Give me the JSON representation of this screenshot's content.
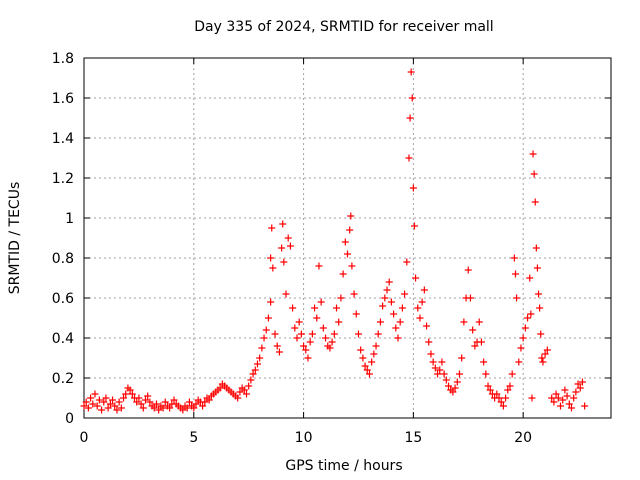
{
  "chart_data": {
    "type": "scatter",
    "title": "Day 335 of 2024, SRMTID for receiver mall",
    "xlabel": "GPS time / hours",
    "ylabel": "SRMTID / TECUs",
    "xlim": [
      0,
      24
    ],
    "ylim": [
      0,
      1.8
    ],
    "xticks": [
      0,
      5,
      10,
      15,
      20
    ],
    "yticks": [
      0,
      0.2,
      0.4,
      0.6,
      0.8,
      1,
      1.2,
      1.4,
      1.6,
      1.8
    ],
    "ytick_labels": [
      "0",
      "0.2",
      "0.4",
      "0.6",
      "0.8",
      "1",
      "1.2",
      "1.4",
      "1.6",
      "1.8"
    ],
    "grid": true,
    "marker": "+",
    "color": "#ff0000",
    "series": [
      {
        "name": "SRMTID",
        "points": [
          [
            0.0,
            0.06
          ],
          [
            0.1,
            0.08
          ],
          [
            0.2,
            0.05
          ],
          [
            0.3,
            0.1
          ],
          [
            0.4,
            0.07
          ],
          [
            0.5,
            0.12
          ],
          [
            0.6,
            0.06
          ],
          [
            0.7,
            0.09
          ],
          [
            0.8,
            0.04
          ],
          [
            0.9,
            0.08
          ],
          [
            1.0,
            0.1
          ],
          [
            1.1,
            0.05
          ],
          [
            1.2,
            0.07
          ],
          [
            1.3,
            0.09
          ],
          [
            1.4,
            0.06
          ],
          [
            1.5,
            0.04
          ],
          [
            1.6,
            0.08
          ],
          [
            1.7,
            0.05
          ],
          [
            1.8,
            0.1
          ],
          [
            1.9,
            0.12
          ],
          [
            2.0,
            0.15
          ],
          [
            2.1,
            0.14
          ],
          [
            2.2,
            0.12
          ],
          [
            2.3,
            0.1
          ],
          [
            2.4,
            0.08
          ],
          [
            2.5,
            0.1
          ],
          [
            2.6,
            0.07
          ],
          [
            2.7,
            0.05
          ],
          [
            2.8,
            0.09
          ],
          [
            2.9,
            0.11
          ],
          [
            3.0,
            0.08
          ],
          [
            3.1,
            0.06
          ],
          [
            3.2,
            0.05
          ],
          [
            3.3,
            0.07
          ],
          [
            3.4,
            0.04
          ],
          [
            3.5,
            0.06
          ],
          [
            3.6,
            0.05
          ],
          [
            3.7,
            0.08
          ],
          [
            3.8,
            0.06
          ],
          [
            3.9,
            0.05
          ],
          [
            4.0,
            0.07
          ],
          [
            4.1,
            0.09
          ],
          [
            4.2,
            0.07
          ],
          [
            4.3,
            0.06
          ],
          [
            4.4,
            0.05
          ],
          [
            4.5,
            0.04
          ],
          [
            4.6,
            0.06
          ],
          [
            4.7,
            0.05
          ],
          [
            4.8,
            0.08
          ],
          [
            4.9,
            0.06
          ],
          [
            5.0,
            0.05
          ],
          [
            5.1,
            0.07
          ],
          [
            5.2,
            0.09
          ],
          [
            5.3,
            0.08
          ],
          [
            5.4,
            0.06
          ],
          [
            5.5,
            0.08
          ],
          [
            5.6,
            0.1
          ],
          [
            5.7,
            0.09
          ],
          [
            5.8,
            0.11
          ],
          [
            5.9,
            0.12
          ],
          [
            6.0,
            0.13
          ],
          [
            6.1,
            0.14
          ],
          [
            6.2,
            0.15
          ],
          [
            6.3,
            0.17
          ],
          [
            6.4,
            0.16
          ],
          [
            6.5,
            0.15
          ],
          [
            6.6,
            0.14
          ],
          [
            6.7,
            0.13
          ],
          [
            6.8,
            0.12
          ],
          [
            6.9,
            0.11
          ],
          [
            7.0,
            0.1
          ],
          [
            7.1,
            0.13
          ],
          [
            7.2,
            0.15
          ],
          [
            7.3,
            0.14
          ],
          [
            7.4,
            0.12
          ],
          [
            7.5,
            0.16
          ],
          [
            7.6,
            0.19
          ],
          [
            7.7,
            0.22
          ],
          [
            7.8,
            0.24
          ],
          [
            7.9,
            0.27
          ],
          [
            8.0,
            0.3
          ],
          [
            8.1,
            0.35
          ],
          [
            8.2,
            0.4
          ],
          [
            8.3,
            0.44
          ],
          [
            8.4,
            0.5
          ],
          [
            8.5,
            0.58
          ],
          [
            8.5,
            0.8
          ],
          [
            8.55,
            0.95
          ],
          [
            8.6,
            0.75
          ],
          [
            8.7,
            0.42
          ],
          [
            8.8,
            0.36
          ],
          [
            8.9,
            0.33
          ],
          [
            9.0,
            0.85
          ],
          [
            9.05,
            0.97
          ],
          [
            9.1,
            0.78
          ],
          [
            9.2,
            0.62
          ],
          [
            9.3,
            0.9
          ],
          [
            9.4,
            0.86
          ],
          [
            9.5,
            0.55
          ],
          [
            9.6,
            0.45
          ],
          [
            9.7,
            0.4
          ],
          [
            9.8,
            0.48
          ],
          [
            9.9,
            0.42
          ],
          [
            10.0,
            0.36
          ],
          [
            10.1,
            0.34
          ],
          [
            10.2,
            0.3
          ],
          [
            10.3,
            0.38
          ],
          [
            10.4,
            0.42
          ],
          [
            10.5,
            0.55
          ],
          [
            10.6,
            0.5
          ],
          [
            10.7,
            0.76
          ],
          [
            10.8,
            0.58
          ],
          [
            10.9,
            0.45
          ],
          [
            11.0,
            0.4
          ],
          [
            11.1,
            0.36
          ],
          [
            11.2,
            0.35
          ],
          [
            11.3,
            0.38
          ],
          [
            11.4,
            0.42
          ],
          [
            11.5,
            0.55
          ],
          [
            11.6,
            0.48
          ],
          [
            11.7,
            0.6
          ],
          [
            11.8,
            0.72
          ],
          [
            11.9,
            0.88
          ],
          [
            12.0,
            0.82
          ],
          [
            12.1,
            0.94
          ],
          [
            12.15,
            1.01
          ],
          [
            12.2,
            0.76
          ],
          [
            12.3,
            0.62
          ],
          [
            12.4,
            0.52
          ],
          [
            12.5,
            0.42
          ],
          [
            12.6,
            0.34
          ],
          [
            12.7,
            0.3
          ],
          [
            12.8,
            0.26
          ],
          [
            12.9,
            0.24
          ],
          [
            13.0,
            0.22
          ],
          [
            13.1,
            0.28
          ],
          [
            13.2,
            0.32
          ],
          [
            13.3,
            0.36
          ],
          [
            13.4,
            0.42
          ],
          [
            13.5,
            0.48
          ],
          [
            13.6,
            0.56
          ],
          [
            13.7,
            0.6
          ],
          [
            13.8,
            0.64
          ],
          [
            13.9,
            0.68
          ],
          [
            14.0,
            0.58
          ],
          [
            14.1,
            0.52
          ],
          [
            14.2,
            0.45
          ],
          [
            14.3,
            0.4
          ],
          [
            14.4,
            0.48
          ],
          [
            14.5,
            0.55
          ],
          [
            14.6,
            0.62
          ],
          [
            14.7,
            0.78
          ],
          [
            14.8,
            1.3
          ],
          [
            14.85,
            1.5
          ],
          [
            14.9,
            1.73
          ],
          [
            14.95,
            1.6
          ],
          [
            15.0,
            1.15
          ],
          [
            15.05,
            0.96
          ],
          [
            15.1,
            0.7
          ],
          [
            15.2,
            0.55
          ],
          [
            15.3,
            0.5
          ],
          [
            15.4,
            0.58
          ],
          [
            15.5,
            0.64
          ],
          [
            15.6,
            0.46
          ],
          [
            15.7,
            0.38
          ],
          [
            15.8,
            0.32
          ],
          [
            15.9,
            0.28
          ],
          [
            16.0,
            0.25
          ],
          [
            16.1,
            0.22
          ],
          [
            16.2,
            0.24
          ],
          [
            16.3,
            0.28
          ],
          [
            16.4,
            0.22
          ],
          [
            16.5,
            0.19
          ],
          [
            16.6,
            0.16
          ],
          [
            16.7,
            0.14
          ],
          [
            16.8,
            0.13
          ],
          [
            16.9,
            0.15
          ],
          [
            17.0,
            0.18
          ],
          [
            17.1,
            0.22
          ],
          [
            17.2,
            0.3
          ],
          [
            17.3,
            0.48
          ],
          [
            17.4,
            0.6
          ],
          [
            17.5,
            0.74
          ],
          [
            17.6,
            0.6
          ],
          [
            17.7,
            0.44
          ],
          [
            17.8,
            0.36
          ],
          [
            17.9,
            0.38
          ],
          [
            18.0,
            0.48
          ],
          [
            18.1,
            0.38
          ],
          [
            18.2,
            0.28
          ],
          [
            18.3,
            0.22
          ],
          [
            18.4,
            0.16
          ],
          [
            18.5,
            0.14
          ],
          [
            18.6,
            0.12
          ],
          [
            18.7,
            0.1
          ],
          [
            18.8,
            0.12
          ],
          [
            18.9,
            0.1
          ],
          [
            19.0,
            0.08
          ],
          [
            19.1,
            0.06
          ],
          [
            19.2,
            0.1
          ],
          [
            19.3,
            0.14
          ],
          [
            19.4,
            0.16
          ],
          [
            19.5,
            0.22
          ],
          [
            19.6,
            0.8
          ],
          [
            19.65,
            0.72
          ],
          [
            19.7,
            0.6
          ],
          [
            19.8,
            0.28
          ],
          [
            19.9,
            0.35
          ],
          [
            20.0,
            0.4
          ],
          [
            20.1,
            0.45
          ],
          [
            20.2,
            0.5
          ],
          [
            20.3,
            0.7
          ],
          [
            20.35,
            0.52
          ],
          [
            20.4,
            0.1
          ],
          [
            20.45,
            1.32
          ],
          [
            20.5,
            1.22
          ],
          [
            20.55,
            1.08
          ],
          [
            20.6,
            0.85
          ],
          [
            20.65,
            0.75
          ],
          [
            20.7,
            0.62
          ],
          [
            20.75,
            0.55
          ],
          [
            20.8,
            0.42
          ],
          [
            20.85,
            0.3
          ],
          [
            20.9,
            0.28
          ],
          [
            21.0,
            0.32
          ],
          [
            21.1,
            0.34
          ],
          [
            21.3,
            0.1
          ],
          [
            21.4,
            0.08
          ],
          [
            21.5,
            0.12
          ],
          [
            21.6,
            0.1
          ],
          [
            21.7,
            0.06
          ],
          [
            21.8,
            0.09
          ],
          [
            21.9,
            0.14
          ],
          [
            22.0,
            0.11
          ],
          [
            22.1,
            0.07
          ],
          [
            22.2,
            0.05
          ],
          [
            22.3,
            0.1
          ],
          [
            22.4,
            0.13
          ],
          [
            22.5,
            0.17
          ],
          [
            22.6,
            0.15
          ],
          [
            22.7,
            0.18
          ],
          [
            22.8,
            0.06
          ]
        ]
      }
    ]
  }
}
